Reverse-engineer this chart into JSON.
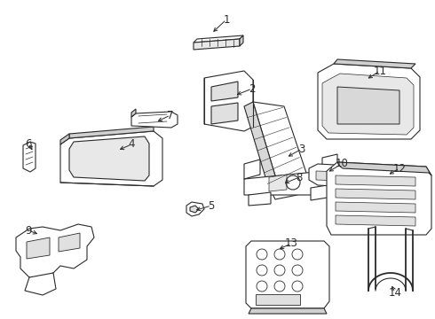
{
  "bg_color": "#ffffff",
  "line_color": "#2a2a2a",
  "line_width": 0.8,
  "figsize": [
    4.9,
    3.6
  ],
  "dpi": 100
}
